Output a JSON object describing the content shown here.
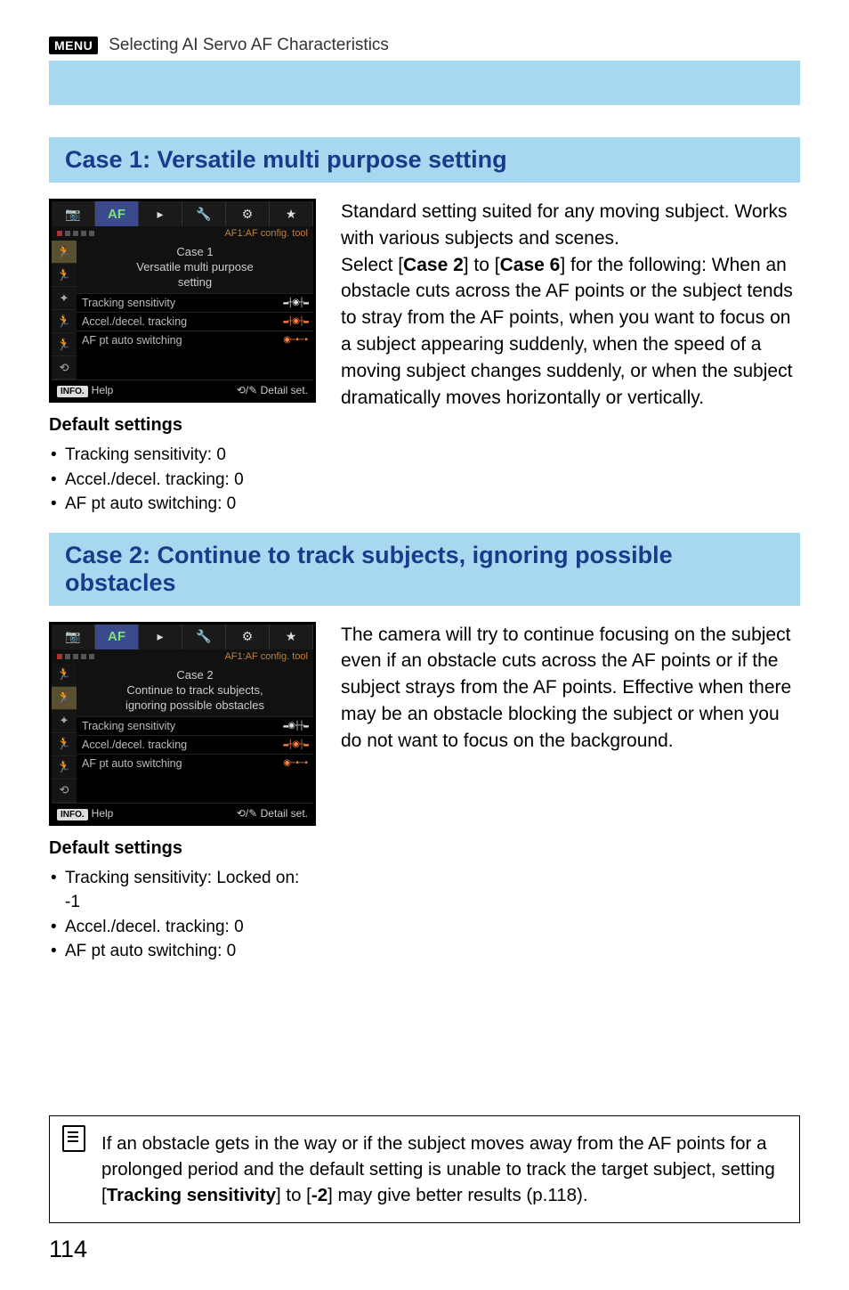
{
  "header": {
    "menu_badge": "MENU",
    "title": "Selecting AI Servo AF Characteristics"
  },
  "case1": {
    "title": "Case 1: Versatile multi purpose setting",
    "menu": {
      "sub_label": "AF1:AF config. tool",
      "case_label": "Case 1",
      "desc1": "Versatile multi purpose",
      "desc2": "setting",
      "row1": "Tracking sensitivity",
      "row2": "Accel./decel. tracking",
      "row3": "AF pt auto switching",
      "help": "Help",
      "detail": "Detail set."
    },
    "body_parts": {
      "p1": "Standard setting suited for any moving subject. Works with various subjects and scenes.",
      "p2a": "Select [",
      "c2": "Case 2",
      "p2b": "] to [",
      "c6": "Case 6",
      "p2c": "] for the following: When an obstacle cuts across the AF points or the subject tends to stray from the AF points, when you want to focus on a subject appearing suddenly, when the speed of a moving subject changes suddenly, or when the subject dramatically moves horizontally or vertically."
    },
    "defaults_h": "Default settings",
    "defaults": {
      "b1": "Tracking sensitivity: 0",
      "b2": "Accel./decel. tracking: 0",
      "b3": "AF pt auto switching: 0"
    }
  },
  "case2": {
    "title": "Case 2: Continue to track subjects, ignoring possible obstacles",
    "menu": {
      "sub_label": "AF1:AF config. tool",
      "case_label": "Case 2",
      "desc1": "Continue to track subjects,",
      "desc2": "ignoring possible obstacles",
      "row1": "Tracking sensitivity",
      "row2": "Accel./decel. tracking",
      "row3": "AF pt auto switching",
      "help": "Help",
      "detail": "Detail set."
    },
    "body": "The camera will try to continue focusing on the subject even if an obstacle cuts across the AF points or if the subject strays from the AF points. Effective when there may be an obstacle blocking the subject or when you do not want to focus on the background.",
    "defaults_h": "Default settings",
    "defaults": {
      "b1": "Tracking sensitivity: Locked on: -1",
      "b2": "Accel./decel. tracking: 0",
      "b3": "AF pt auto switching: 0"
    }
  },
  "note": {
    "t1": "If an obstacle gets in the way or if the subject moves away from the AF points for a prolonged period and the default setting is unable to track the target subject, setting [",
    "s1": "Tracking sensitivity",
    "t2": "] to [",
    "s2": "-2",
    "t3": "] may give better results (p.118)."
  },
  "page": "114",
  "icons": {
    "camera": "📷",
    "af": "AF",
    "play": "▸",
    "tool": "🔧",
    "gear": "⚙",
    "star": "★",
    "run": "🏃",
    "wave": "〰",
    "pt": "⋯",
    "info": "INFO."
  },
  "dials": {
    "center": "▬┼◉┼▬",
    "center_orange": "▬┼◉┼▬",
    "left": "▬◉┼┼▬",
    "sw": "◉─▪─▪"
  }
}
